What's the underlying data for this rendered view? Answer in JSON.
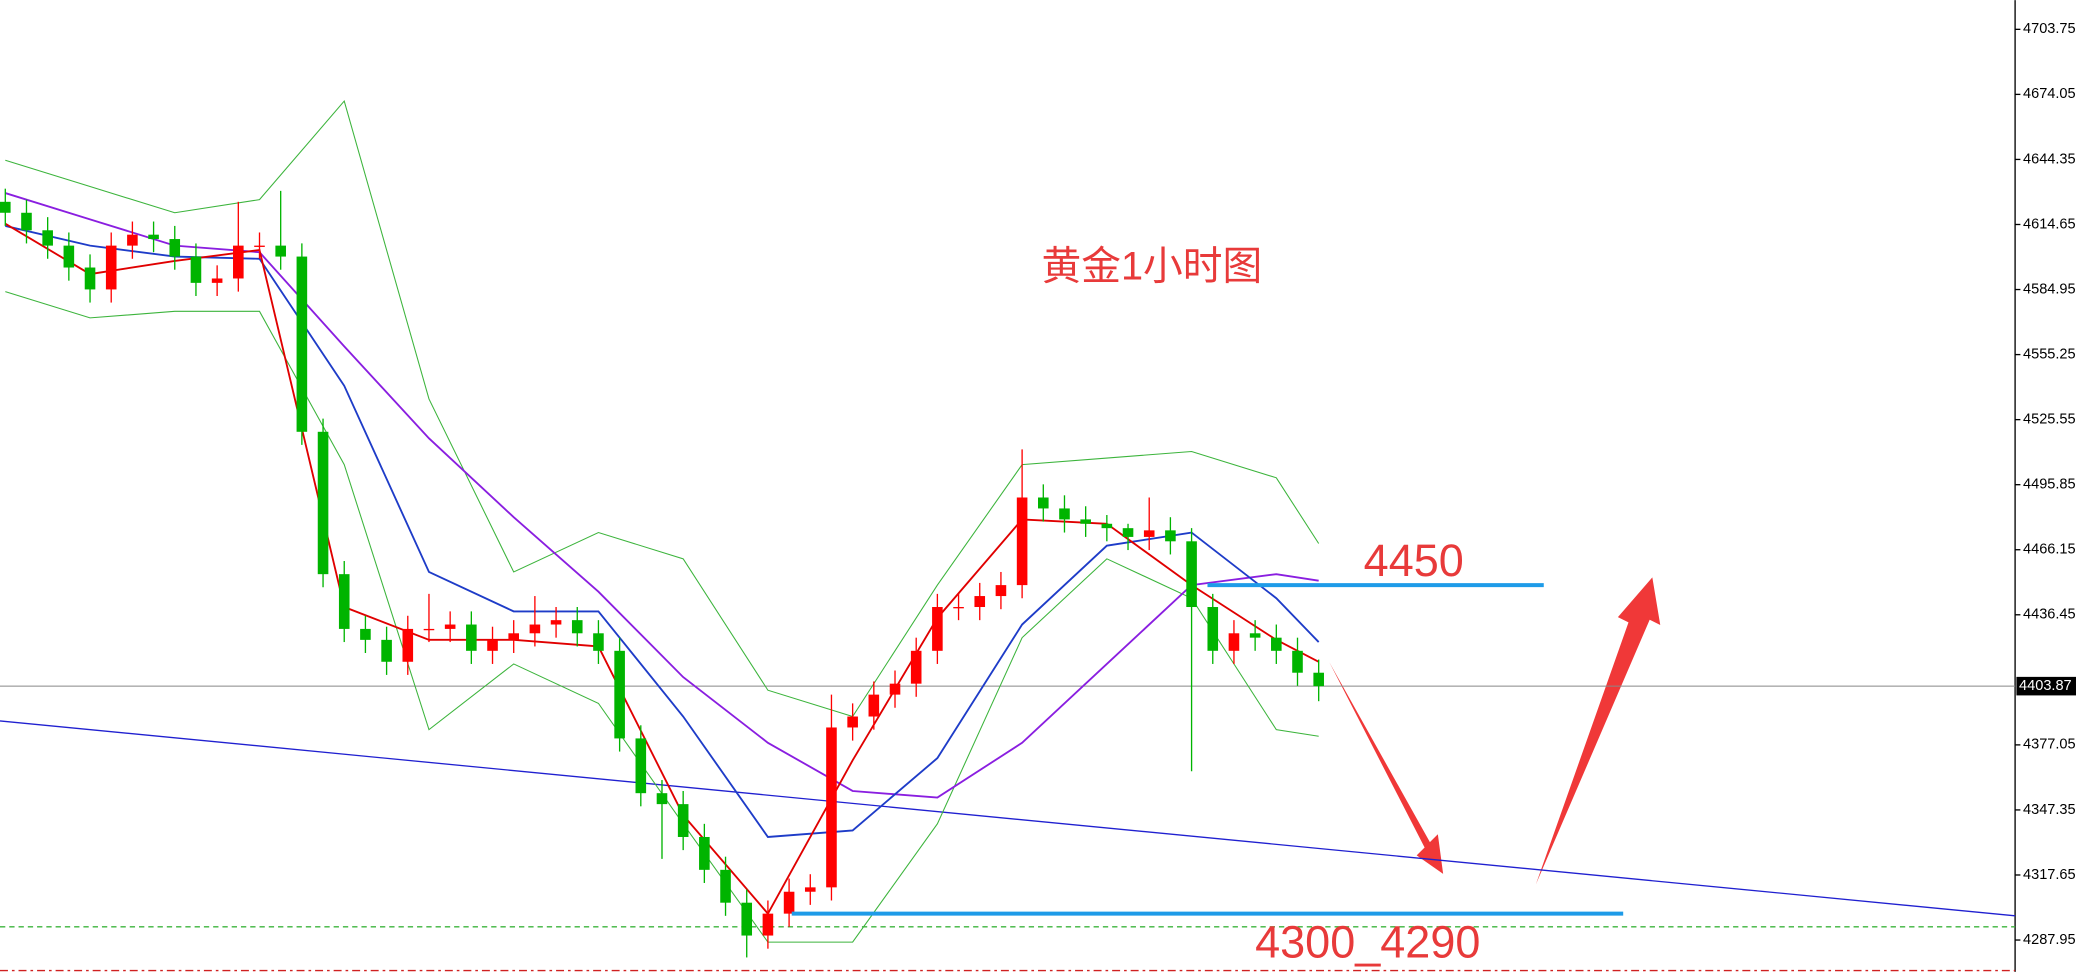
{
  "chart_data": {
    "type": "candlestick",
    "title": "黄金1小时图",
    "ylim": [
      4273.4,
      4717.1
    ],
    "yticks": [
      4703.75,
      4674.05,
      4644.35,
      4614.65,
      4584.95,
      4555.25,
      4525.55,
      4495.85,
      4466.15,
      4436.45,
      4377.05,
      4347.35,
      4317.65,
      4287.95
    ],
    "up_color": "#ff0000",
    "down_color": "#00b400",
    "open": [
      4625,
      4620,
      4612,
      4605,
      4595,
      4585,
      4605,
      4610,
      4608,
      4600,
      4588,
      4590,
      4605,
      4605,
      4600,
      4520,
      4455,
      4430,
      4425,
      4415,
      4430,
      4430,
      4432,
      4420,
      4425,
      4428,
      4432,
      4434,
      4428,
      4420,
      4380,
      4355,
      4350,
      4335,
      4320,
      4305,
      4290,
      4300,
      4310,
      4312,
      4385,
      4390,
      4400,
      4405,
      4420,
      4440,
      4440,
      4445,
      4450,
      4490,
      4485,
      4480,
      4478,
      4476,
      4472,
      4475,
      4470,
      4440,
      4420,
      4428,
      4426,
      4420,
      4410
    ],
    "high": [
      4631,
      4626,
      4618,
      4611,
      4601,
      4611,
      4616,
      4616,
      4614,
      4606,
      4596,
      4625,
      4611,
      4630,
      4606,
      4526,
      4461,
      4436,
      4431,
      4436,
      4446,
      4438,
      4438,
      4431,
      4434,
      4445,
      4440,
      4440,
      4434,
      4426,
      4386,
      4361,
      4356,
      4341,
      4326,
      4311,
      4306,
      4316,
      4318,
      4400,
      4396,
      4406,
      4411,
      4426,
      4446,
      4446,
      4451,
      4456,
      4512,
      4496,
      4491,
      4486,
      4482,
      4478,
      4490,
      4481,
      4476,
      4446,
      4434,
      4434,
      4432,
      4426,
      4416
    ],
    "low": [
      4614,
      4606,
      4599,
      4589,
      4579,
      4579,
      4599,
      4602,
      4594,
      4582,
      4582,
      4584,
      4599,
      4594,
      4514,
      4449,
      4424,
      4419,
      4409,
      4409,
      4424,
      4424,
      4414,
      4414,
      4419,
      4422,
      4426,
      4422,
      4414,
      4374,
      4349,
      4325,
      4329,
      4314,
      4299,
      4280,
      4284,
      4294,
      4304,
      4306,
      4379,
      4384,
      4394,
      4399,
      4414,
      4434,
      4434,
      4439,
      4444,
      4479,
      4474,
      4472,
      4470,
      4466,
      4466,
      4464,
      4365,
      4414,
      4414,
      4420,
      4414,
      4404,
      4397
    ],
    "close": [
      4620,
      4612,
      4605,
      4595,
      4585,
      4605,
      4610,
      4608,
      4600,
      4588,
      4590,
      4605,
      4605,
      4600,
      4520,
      4455,
      4430,
      4425,
      4415,
      4430,
      4430,
      4432,
      4420,
      4425,
      4428,
      4432,
      4434,
      4428,
      4420,
      4380,
      4355,
      4350,
      4335,
      4320,
      4305,
      4290,
      4300,
      4310,
      4312,
      4385,
      4390,
      4400,
      4405,
      4420,
      4440,
      4440,
      4445,
      4450,
      4490,
      4485,
      4480,
      4478,
      4476,
      4472,
      4475,
      4470,
      4440,
      4420,
      4428,
      4426,
      4420,
      4410,
      4403.87
    ],
    "line_x": [
      0,
      4,
      8,
      12,
      16,
      20,
      24,
      28,
      32,
      36,
      40,
      44,
      48,
      52,
      56,
      60,
      62
    ],
    "lines": [
      {
        "color": "#3cb43c",
        "values": [
          4644,
          4632,
          4620,
          4626,
          4671,
          4535,
          4456,
          4474,
          4462,
          4402,
          4390,
          4450,
          4505,
          4508,
          4511,
          4499,
          4469
        ]
      },
      {
        "color": "#3cb43c",
        "values": [
          4584,
          4572,
          4575,
          4575,
          4505,
          4384,
          4414,
          4396,
          4341,
          4287,
          4287,
          4341,
          4426,
          4462,
          4444,
          4384,
          4381
        ]
      },
      {
        "color": "#8a1ee0",
        "values": [
          4629,
          4617,
          4605,
          4602,
          4559,
          4517,
          4481,
          4447,
          4408,
          4378,
          4356,
          4353,
          4378,
          4414,
          4450,
          4455,
          4452
        ]
      },
      {
        "color": "#1e3cc8",
        "values": [
          4614,
          4605,
          4600,
          4599,
          4541,
          4456,
          4438,
          4438,
          4390,
          4335,
          4338,
          4371,
          4432,
          4468,
          4474,
          4444,
          4424
        ]
      },
      {
        "color": "#e00000",
        "values": [
          4615,
          4592,
          4598,
          4603,
          4440,
          4425,
          4425,
          4422,
          4345,
          4300,
          4370,
          4435,
          4480,
          4478,
          4450,
          4425,
          4415
        ]
      }
    ],
    "trend_line": [
      4388,
      4299
    ],
    "reference_lines": [
      4294,
      4274
    ],
    "last_price": 4403.87,
    "annotations": [
      {
        "text": "4450",
        "value": 4450
      },
      {
        "text": "4300_4290",
        "value": 4300
      }
    ]
  }
}
